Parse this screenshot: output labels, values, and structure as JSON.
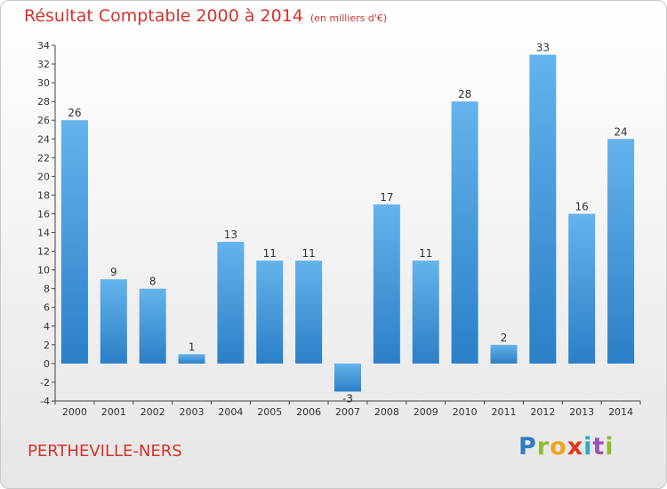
{
  "header": {
    "title": "Résultat Comptable 2000 à 2014",
    "subtitle": "(en milliers d'€)"
  },
  "footer": {
    "commune": "PERTHEVILLE-NERS",
    "logo_letters": [
      "P",
      "r",
      "o",
      "x",
      "i",
      "t",
      "i"
    ]
  },
  "colors": {
    "title": "#d2342e",
    "bar_top": "#64b3ec",
    "bar_bottom": "#2a7fc6"
  },
  "chart_data": {
    "type": "bar",
    "title": "Résultat Comptable 2000 à 2014",
    "subtitle": "(en milliers d'€)",
    "xlabel": "",
    "ylabel": "",
    "categories": [
      "2000",
      "2001",
      "2002",
      "2003",
      "2004",
      "2005",
      "2006",
      "2007",
      "2008",
      "2009",
      "2010",
      "2011",
      "2012",
      "2013",
      "2014"
    ],
    "values": [
      26,
      9,
      8,
      1,
      13,
      11,
      11,
      -3,
      17,
      11,
      28,
      2,
      33,
      16,
      24
    ],
    "data_labels": [
      "26",
      "9",
      "8",
      "1",
      "13",
      "11",
      "11",
      "-3",
      "17",
      "11",
      "28",
      "2",
      "33",
      "16",
      "24"
    ],
    "ylim": [
      -4,
      34
    ],
    "yticks": [
      -4,
      -2,
      0,
      2,
      4,
      6,
      8,
      10,
      12,
      14,
      16,
      18,
      20,
      22,
      24,
      26,
      28,
      30,
      32,
      34
    ],
    "ytick_labels": [
      "-4",
      "-2",
      "0",
      "2",
      "4",
      "6",
      "8",
      "10",
      "12",
      "14",
      "16",
      "18",
      "20",
      "22",
      "24",
      "26",
      "28",
      "30",
      "32",
      "34"
    ],
    "grid": false,
    "legend": "none"
  }
}
